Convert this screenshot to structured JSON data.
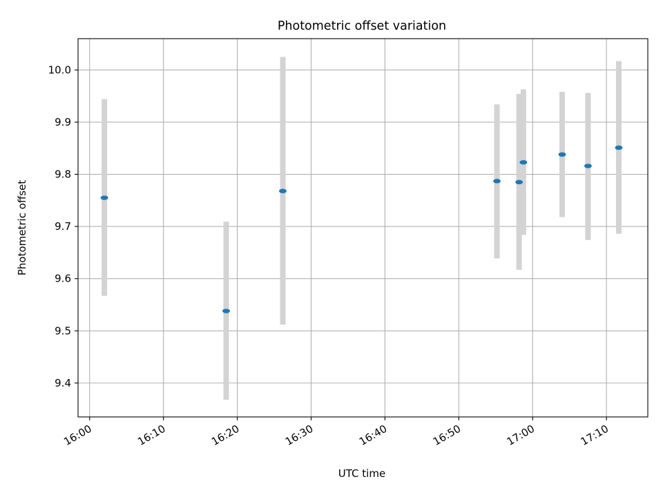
{
  "chart_data": {
    "type": "scatter",
    "title": "Photometric offset variation",
    "xlabel": "UTC time",
    "ylabel": "Photometric offset",
    "x_unit": "UTC time of day (HH:MM)",
    "xlim": [
      "15:58:26",
      "17:15:36"
    ],
    "ylim": [
      9.335,
      10.06
    ],
    "grid": true,
    "x_ticks": [
      "16:00",
      "16:10",
      "16:20",
      "16:30",
      "16:40",
      "16:50",
      "17:00",
      "17:10"
    ],
    "y_ticks": [
      9.4,
      9.5,
      9.6,
      9.7,
      9.8,
      9.9,
      10.0
    ],
    "y_tick_labels": [
      "9.4",
      "9.5",
      "9.6",
      "9.7",
      "9.8",
      "9.9",
      "10.0"
    ],
    "colors": {
      "marker": "#1f77b4",
      "errorbar": "#d3d3d3",
      "grid": "#b0b0b0"
    },
    "points": [
      {
        "x": "16:02:00",
        "y": 9.755,
        "ylow": 9.567,
        "yhigh": 9.944
      },
      {
        "x": "16:18:30",
        "y": 9.538,
        "ylow": 9.368,
        "yhigh": 9.709
      },
      {
        "x": "16:26:10",
        "y": 9.768,
        "ylow": 9.512,
        "yhigh": 10.025
      },
      {
        "x": "16:55:10",
        "y": 9.787,
        "ylow": 9.639,
        "yhigh": 9.934
      },
      {
        "x": "16:58:10",
        "y": 9.785,
        "ylow": 9.617,
        "yhigh": 9.954
      },
      {
        "x": "16:58:45",
        "y": 9.823,
        "ylow": 9.684,
        "yhigh": 9.963
      },
      {
        "x": "17:04:00",
        "y": 9.838,
        "ylow": 9.718,
        "yhigh": 9.958
      },
      {
        "x": "17:07:30",
        "y": 9.816,
        "ylow": 9.674,
        "yhigh": 9.956
      },
      {
        "x": "17:11:40",
        "y": 9.851,
        "ylow": 9.686,
        "yhigh": 10.017
      }
    ]
  }
}
